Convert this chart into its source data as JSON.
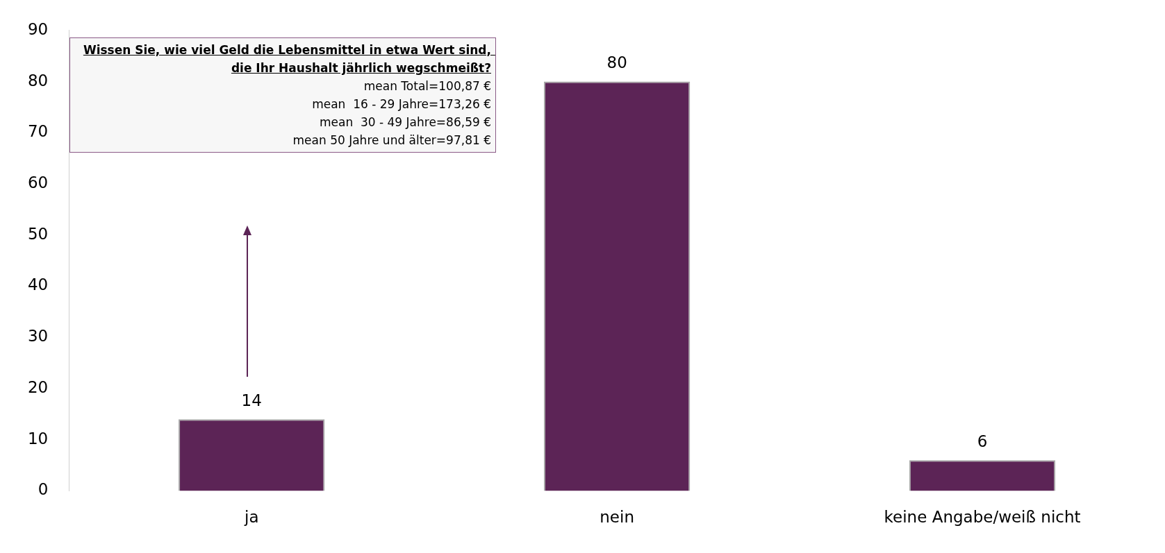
{
  "chart_data": {
    "type": "bar",
    "categories": [
      "ja",
      "nein",
      "keine Angabe/weiß nicht"
    ],
    "values": [
      14,
      80,
      6
    ],
    "color": "#5c2456",
    "ylim": [
      0,
      90
    ],
    "yticks": [
      0,
      10,
      20,
      30,
      40,
      50,
      60,
      70,
      80,
      90
    ],
    "grid": false,
    "data_labels": true,
    "annotations": [
      "Wissen Sie, wie viel Geld die Lebensmittel in etwa Wert sind, die Ihr Haushalt jährlich wegschmeißt?",
      "mean Total=100,87 €",
      "mean  16 - 29 Jahre=173,26 €",
      "mean  30 - 49 Jahre=86,59 €",
      "mean 50 Jahre und älter=97,81 €"
    ]
  }
}
